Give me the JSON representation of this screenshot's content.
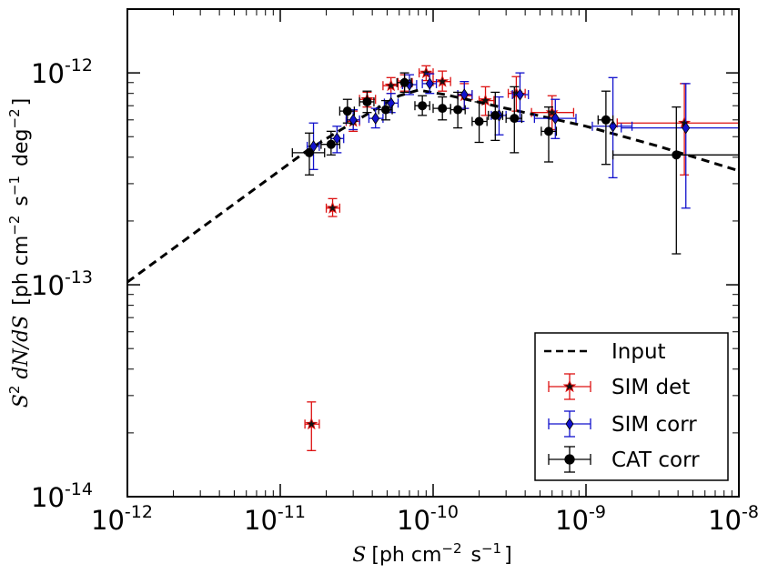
{
  "chart_data": {
    "type": "scatter",
    "title": "",
    "xlabel": {
      "var": "S",
      "text": "[ph cm",
      "exp1": "−2",
      "mid": " s",
      "exp2": "−1",
      "end": "]"
    },
    "ylabel": {
      "var_s": "S",
      "sq": "2",
      "var_rest": " dN/dS",
      "text": " [ph cm",
      "exp1": "−2",
      "mid": " s",
      "exp2": "−1",
      "mid2": " deg",
      "exp3": "−2",
      "end": "]"
    },
    "x_scale": "log",
    "y_scale": "log",
    "xlim": [
      1e-12,
      1e-08
    ],
    "ylim": [
      1e-14,
      2e-12
    ],
    "x_ticks": [
      {
        "value": 1e-12,
        "base": "10",
        "exp": "-12"
      },
      {
        "value": 1e-11,
        "base": "10",
        "exp": "-11"
      },
      {
        "value": 1e-10,
        "base": "10",
        "exp": "-10"
      },
      {
        "value": 1e-09,
        "base": "10",
        "exp": "-9"
      },
      {
        "value": 1e-08,
        "base": "10",
        "exp": "-8"
      }
    ],
    "y_ticks": [
      {
        "value": 1e-14,
        "base": "10",
        "exp": "-14"
      },
      {
        "value": 1e-13,
        "base": "10",
        "exp": "-13"
      },
      {
        "value": 1e-12,
        "base": "10",
        "exp": "-12"
      }
    ],
    "grid": false,
    "legend_position": "bottom-right",
    "series": [
      {
        "name": "Input",
        "kind": "line",
        "color": "#000000",
        "dash": true,
        "x": [
          1e-12,
          1.5e-11,
          2.5e-11,
          4e-11,
          6e-11,
          8e-11,
          1.2e-10,
          3e-10,
          1e-09,
          3e-09,
          1e-08
        ],
        "y": [
          1.03e-13,
          4.3e-13,
          5.4e-13,
          6.6e-13,
          7.8e-13,
          8.3e-13,
          7.9e-13,
          6.8e-13,
          5.6e-13,
          4.5e-13,
          3.45e-13
        ]
      },
      {
        "name": "SIM det",
        "kind": "errorbar",
        "marker": "star",
        "color": "#dd1111",
        "points": [
          {
            "x": 1.6e-11,
            "y": 2.2e-14,
            "x_lo": 1.45e-11,
            "x_hi": 1.8e-11,
            "y_lo": 1.65e-14,
            "y_hi": 2.8e-14
          },
          {
            "x": 2.2e-11,
            "y": 2.3e-13,
            "x_lo": 2e-11,
            "x_hi": 2.45e-11,
            "y_lo": 2.1e-13,
            "y_hi": 2.55e-13
          },
          {
            "x": 3e-11,
            "y": 5.9e-13,
            "x_lo": 2.7e-11,
            "x_hi": 3.3e-11,
            "y_lo": 5.3e-13,
            "y_hi": 6.6e-13
          },
          {
            "x": 3.7e-11,
            "y": 7.5e-13,
            "x_lo": 3.3e-11,
            "x_hi": 4.2e-11,
            "y_lo": 6.9e-13,
            "y_hi": 8.1e-13
          },
          {
            "x": 5.3e-11,
            "y": 8.7e-13,
            "x_lo": 4.7e-11,
            "x_hi": 5.9e-11,
            "y_lo": 8e-13,
            "y_hi": 9.5e-13
          },
          {
            "x": 6.5e-11,
            "y": 9e-13,
            "x_lo": 5.9e-11,
            "x_hi": 7.3e-11,
            "y_lo": 8.2e-13,
            "y_hi": 9.8e-13
          },
          {
            "x": 9e-11,
            "y": 1e-12,
            "x_lo": 8.1e-11,
            "x_hi": 1e-10,
            "y_lo": 9.2e-13,
            "y_hi": 1.08e-12
          },
          {
            "x": 1.15e-10,
            "y": 9.1e-13,
            "x_lo": 1e-10,
            "x_hi": 1.3e-10,
            "y_lo": 8.2e-13,
            "y_hi": 1.02e-12
          },
          {
            "x": 1.6e-10,
            "y": 7.8e-13,
            "x_lo": 1.45e-10,
            "x_hi": 1.8e-10,
            "y_lo": 6.8e-13,
            "y_hi": 8.9e-13
          },
          {
            "x": 2.2e-10,
            "y": 7.4e-13,
            "x_lo": 2e-10,
            "x_hi": 2.5e-10,
            "y_lo": 6.3e-13,
            "y_hi": 8.6e-13
          },
          {
            "x": 3.5e-10,
            "y": 8e-13,
            "x_lo": 3.1e-10,
            "x_hi": 4e-10,
            "y_lo": 6.6e-13,
            "y_hi": 9.6e-13
          },
          {
            "x": 6e-10,
            "y": 6.5e-13,
            "x_lo": 4.4e-10,
            "x_hi": 8.3e-10,
            "y_lo": 5.4e-13,
            "y_hi": 7.8e-13
          },
          {
            "x": 4.4e-09,
            "y": 5.8e-13,
            "x_lo": 1.6e-09,
            "x_hi": 1e-08,
            "y_lo": 3.3e-13,
            "y_hi": 8.9e-13
          }
        ]
      },
      {
        "name": "SIM corr",
        "kind": "errorbar",
        "marker": "diamond",
        "color": "#1111cc",
        "points": [
          {
            "x": 1.65e-11,
            "y": 4.5e-13,
            "x_lo": 1.5e-11,
            "x_hi": 1.8e-11,
            "y_lo": 3.5e-13,
            "y_hi": 5.8e-13
          },
          {
            "x": 2.35e-11,
            "y": 4.9e-13,
            "x_lo": 2.15e-11,
            "x_hi": 2.6e-11,
            "y_lo": 4.2e-13,
            "y_hi": 5.6e-13
          },
          {
            "x": 3e-11,
            "y": 6e-13,
            "x_lo": 2.7e-11,
            "x_hi": 3.3e-11,
            "y_lo": 5.4e-13,
            "y_hi": 6.7e-13
          },
          {
            "x": 4.2e-11,
            "y": 6.1e-13,
            "x_lo": 3.8e-11,
            "x_hi": 4.7e-11,
            "y_lo": 5.5e-13,
            "y_hi": 6.8e-13
          },
          {
            "x": 5.3e-11,
            "y": 7.2e-13,
            "x_lo": 4.8e-11,
            "x_hi": 5.9e-11,
            "y_lo": 6.5e-13,
            "y_hi": 8e-13
          },
          {
            "x": 7e-11,
            "y": 8.8e-13,
            "x_lo": 6.3e-11,
            "x_hi": 7.8e-11,
            "y_lo": 7.9e-13,
            "y_hi": 9.8e-13
          },
          {
            "x": 9.5e-11,
            "y": 8.9e-13,
            "x_lo": 8.5e-11,
            "x_hi": 1.05e-10,
            "y_lo": 8e-13,
            "y_hi": 9.9e-13
          },
          {
            "x": 1.6e-10,
            "y": 7.9e-13,
            "x_lo": 1.45e-10,
            "x_hi": 1.8e-10,
            "y_lo": 6.8e-13,
            "y_hi": 9.1e-13
          },
          {
            "x": 2.7e-10,
            "y": 6.3e-13,
            "x_lo": 2.4e-10,
            "x_hi": 3e-10,
            "y_lo": 5.1e-13,
            "y_hi": 7.7e-13
          },
          {
            "x": 3.7e-10,
            "y": 7.9e-13,
            "x_lo": 3.3e-10,
            "x_hi": 4.2e-10,
            "y_lo": 5.9e-13,
            "y_hi": 1e-12
          },
          {
            "x": 6.3e-10,
            "y": 6.1e-13,
            "x_lo": 4.6e-10,
            "x_hi": 8.6e-10,
            "y_lo": 4.9e-13,
            "y_hi": 7.5e-13
          },
          {
            "x": 1.5e-09,
            "y": 5.6e-13,
            "x_lo": 1.1e-09,
            "x_hi": 2e-09,
            "y_lo": 3.2e-13,
            "y_hi": 9.5e-13
          },
          {
            "x": 4.5e-09,
            "y": 5.5e-13,
            "x_lo": 1.7e-09,
            "x_hi": 1e-08,
            "y_lo": 2.3e-13,
            "y_hi": 8.9e-13
          }
        ]
      },
      {
        "name": "CAT corr",
        "kind": "errorbar",
        "marker": "circle",
        "color": "#000000",
        "points": [
          {
            "x": 1.55e-11,
            "y": 4.2e-13,
            "x_lo": 1.2e-11,
            "x_hi": 1.95e-11,
            "y_lo": 3.3e-13,
            "y_hi": 5.2e-13
          },
          {
            "x": 2.15e-11,
            "y": 4.6e-13,
            "x_lo": 1.85e-11,
            "x_hi": 2.45e-11,
            "y_lo": 4.1e-13,
            "y_hi": 5.3e-13
          },
          {
            "x": 2.75e-11,
            "y": 6.6e-13,
            "x_lo": 2.45e-11,
            "x_hi": 3.05e-11,
            "y_lo": 5.8e-13,
            "y_hi": 7.5e-13
          },
          {
            "x": 3.7e-11,
            "y": 7.3e-13,
            "x_lo": 3.3e-11,
            "x_hi": 4.1e-11,
            "y_lo": 6.5e-13,
            "y_hi": 8.2e-13
          },
          {
            "x": 4.9e-11,
            "y": 6.7e-13,
            "x_lo": 4.4e-11,
            "x_hi": 5.4e-11,
            "y_lo": 6e-13,
            "y_hi": 7.4e-13
          },
          {
            "x": 6.5e-11,
            "y": 9e-13,
            "x_lo": 5.8e-11,
            "x_hi": 7.2e-11,
            "y_lo": 8.1e-13,
            "y_hi": 1e-12
          },
          {
            "x": 8.5e-11,
            "y": 7e-13,
            "x_lo": 7.6e-11,
            "x_hi": 9.5e-11,
            "y_lo": 6.3e-13,
            "y_hi": 7.8e-13
          },
          {
            "x": 1.15e-10,
            "y": 6.8e-13,
            "x_lo": 1e-10,
            "x_hi": 1.3e-10,
            "y_lo": 6e-13,
            "y_hi": 7.7e-13
          },
          {
            "x": 1.45e-10,
            "y": 6.7e-13,
            "x_lo": 1.3e-10,
            "x_hi": 1.62e-10,
            "y_lo": 5.5e-13,
            "y_hi": 8.1e-13
          },
          {
            "x": 2e-10,
            "y": 5.9e-13,
            "x_lo": 1.8e-10,
            "x_hi": 2.25e-10,
            "y_lo": 4.7e-13,
            "y_hi": 7.3e-13
          },
          {
            "x": 2.55e-10,
            "y": 6.3e-13,
            "x_lo": 2.3e-10,
            "x_hi": 2.85e-10,
            "y_lo": 4.8e-13,
            "y_hi": 8.1e-13
          },
          {
            "x": 3.4e-10,
            "y": 6.1e-13,
            "x_lo": 3e-10,
            "x_hi": 3.8e-10,
            "y_lo": 4.2e-13,
            "y_hi": 8.6e-13
          },
          {
            "x": 5.7e-10,
            "y": 5.3e-13,
            "x_lo": 5.1e-10,
            "x_hi": 6.4e-10,
            "y_lo": 3.8e-13,
            "y_hi": 6.9e-13
          },
          {
            "x": 1.35e-09,
            "y": 6e-13,
            "x_lo": 1.2e-09,
            "x_hi": 1.5e-09,
            "y_lo": 3.7e-13,
            "y_hi": 8.2e-13
          },
          {
            "x": 3.9e-09,
            "y": 4.1e-13,
            "x_lo": 1.5e-09,
            "x_hi": 1e-08,
            "y_lo": 1.4e-13,
            "y_hi": 6.9e-13
          }
        ]
      }
    ]
  }
}
